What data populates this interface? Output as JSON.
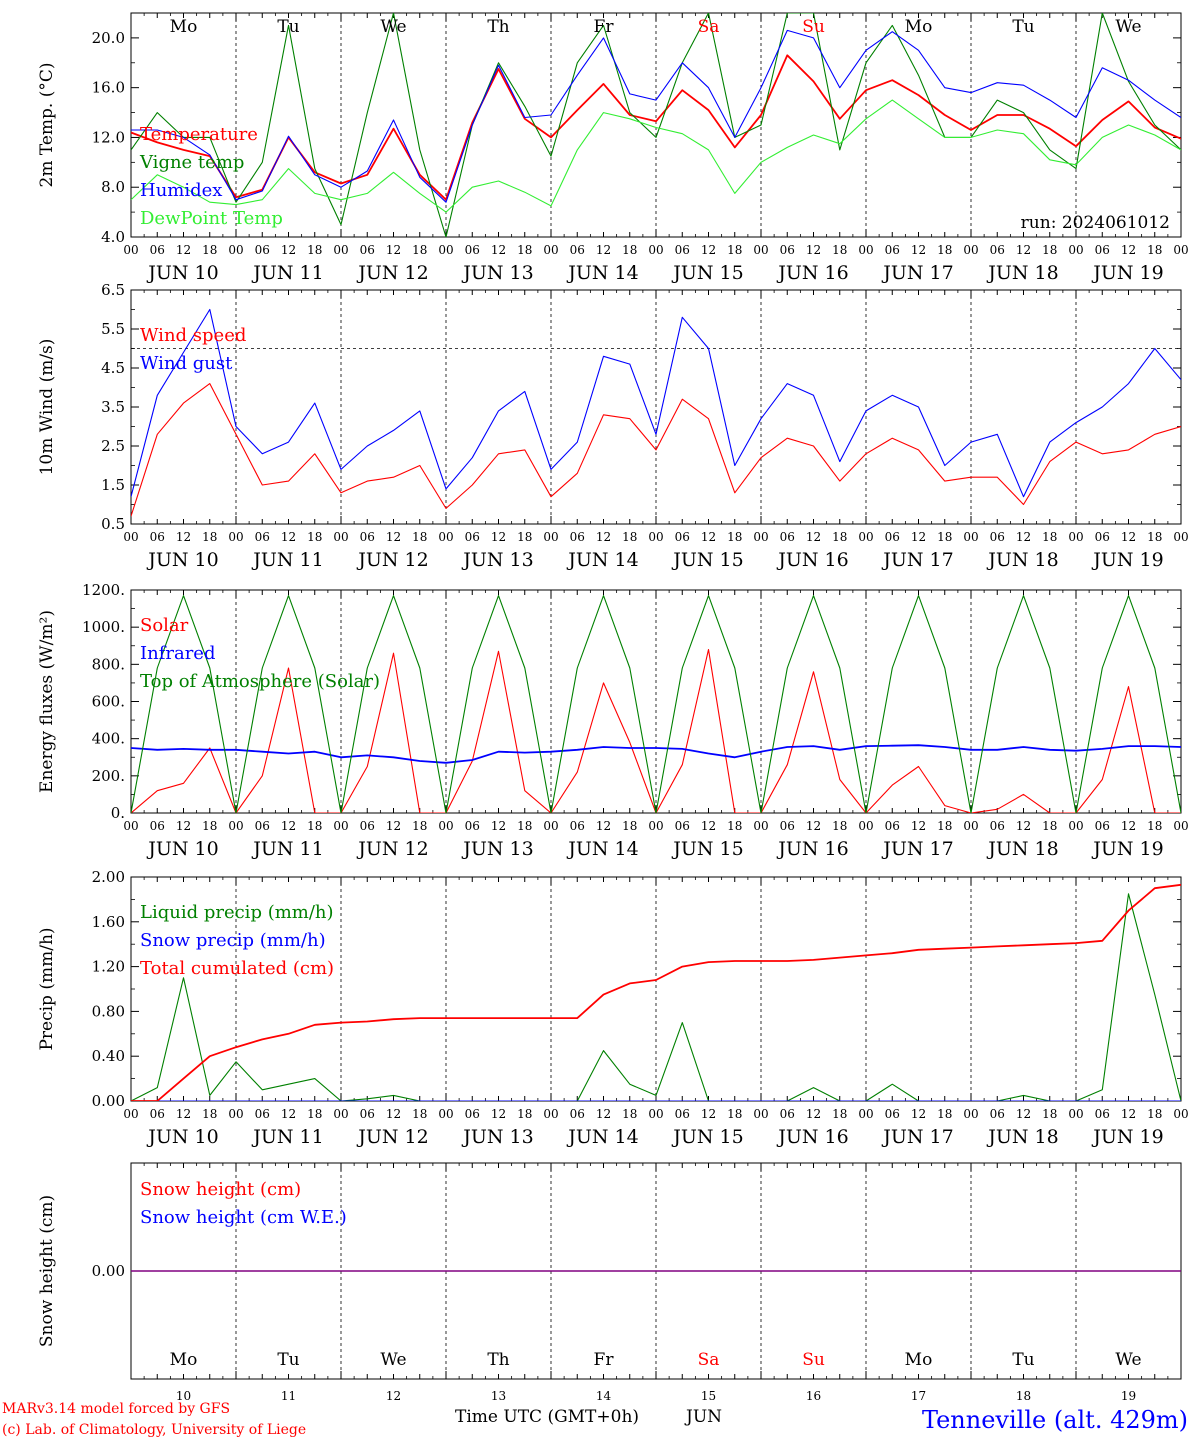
{
  "run_label": "run: 2024061012",
  "credit_line1": "MARv3.14 model forced by GFS",
  "credit_line2": "(c) Lab. of Climatology, University of Liege",
  "station_label": "Tenneville (alt. 429m)",
  "x_axis_title": "Time UTC (GMT+0h)",
  "month_label": "JUN",
  "hour_ticks": [
    "00",
    "06",
    "12",
    "18"
  ],
  "days": [
    {
      "date_label": "JUN 10",
      "dow": "Mo",
      "num": "10",
      "weekend": false
    },
    {
      "date_label": "JUN 11",
      "dow": "Tu",
      "num": "11",
      "weekend": false
    },
    {
      "date_label": "JUN 12",
      "dow": "We",
      "num": "12",
      "weekend": false
    },
    {
      "date_label": "JUN 13",
      "dow": "Th",
      "num": "13",
      "weekend": false
    },
    {
      "date_label": "JUN 14",
      "dow": "Fr",
      "num": "14",
      "weekend": false
    },
    {
      "date_label": "JUN 15",
      "dow": "Sa",
      "num": "15",
      "weekend": true
    },
    {
      "date_label": "JUN 16",
      "dow": "Su",
      "num": "16",
      "weekend": true
    },
    {
      "date_label": "JUN 17",
      "dow": "Mo",
      "num": "17",
      "weekend": false
    },
    {
      "date_label": "JUN 18",
      "dow": "Tu",
      "num": "18",
      "weekend": false
    },
    {
      "date_label": "JUN 19",
      "dow": "We",
      "num": "19",
      "weekend": false
    }
  ],
  "colors": {
    "red": "#ff0000",
    "blue": "#0000ff",
    "green": "#008000",
    "lightgreen": "#33ee33",
    "purple": "#800080",
    "axis": "#000000"
  },
  "chart_data": [
    {
      "id": "temp",
      "type": "line",
      "ylabel": "2m Temp. (°C)",
      "ylim": [
        4,
        22
      ],
      "yticks": [
        "4.0",
        "8.0",
        "12.0",
        "16.0",
        "20.0"
      ],
      "ytick_values": [
        4,
        8,
        12,
        16,
        20
      ],
      "x_hours": [
        0,
        6,
        12,
        18,
        24,
        30,
        36,
        42,
        48,
        54,
        60,
        66,
        72,
        78,
        84,
        90,
        96,
        102,
        108,
        114,
        120,
        126,
        132,
        138,
        144,
        150,
        156,
        162,
        168,
        174,
        180,
        186,
        192,
        198,
        204,
        210,
        216,
        222,
        228,
        234,
        240
      ],
      "series": [
        {
          "name": "Temperature",
          "color": "#ff0000",
          "values": [
            12.4,
            11.6,
            11.0,
            10.5,
            7.2,
            7.8,
            12.0,
            9.2,
            8.3,
            9.0,
            12.7,
            9.0,
            7.0,
            13.2,
            17.5,
            13.5,
            12.0,
            14.2,
            16.3,
            13.8,
            13.3,
            15.8,
            14.2,
            11.2,
            13.8,
            18.6,
            16.5,
            13.5,
            15.8,
            16.6,
            15.4,
            13.8,
            12.6,
            13.8,
            13.8,
            12.7,
            11.3,
            13.4,
            14.9,
            12.8,
            11.9
          ]
        },
        {
          "name": "Vigne temp",
          "color": "#008000",
          "values": [
            11.0,
            14.0,
            12.0,
            12.0,
            6.8,
            10.0,
            21.0,
            9.5,
            5.0,
            14.0,
            22.0,
            11.0,
            4.0,
            13.0,
            18.0,
            14.5,
            10.5,
            18.0,
            21.0,
            14.0,
            12.0,
            18.0,
            22.0,
            12.0,
            13.0,
            22.0,
            22.0,
            11.0,
            18.0,
            21.0,
            17.0,
            12.0,
            12.0,
            15.0,
            14.0,
            11.0,
            9.5,
            22.0,
            16.5,
            13.0,
            11.0
          ]
        },
        {
          "name": "Humidex",
          "color": "#0000ff",
          "values": [
            12.6,
            12.6,
            12.0,
            10.6,
            7.0,
            7.7,
            12.1,
            9.0,
            8.0,
            9.3,
            13.4,
            8.8,
            6.8,
            13.0,
            17.8,
            13.6,
            13.8,
            17.0,
            20.0,
            15.5,
            15.0,
            18.0,
            16.0,
            12.0,
            16.0,
            20.6,
            20.0,
            16.0,
            19.0,
            20.5,
            19.0,
            16.0,
            15.6,
            16.4,
            16.2,
            15.0,
            13.6,
            17.6,
            16.6,
            15.0,
            13.6
          ]
        },
        {
          "name": "DewPoint Temp",
          "color": "#33ee33",
          "values": [
            7.0,
            9.0,
            8.0,
            6.8,
            6.6,
            7.0,
            9.5,
            7.5,
            7.0,
            7.5,
            9.2,
            7.5,
            6.0,
            8.0,
            8.5,
            7.6,
            6.5,
            11.0,
            14.0,
            13.5,
            12.8,
            12.3,
            11.0,
            7.5,
            10.0,
            11.2,
            12.2,
            11.5,
            13.5,
            15.0,
            13.5,
            12.0,
            12.0,
            12.6,
            12.3,
            10.2,
            9.8,
            12.0,
            13.0,
            12.2,
            11.0
          ]
        }
      ]
    },
    {
      "id": "wind",
      "type": "line",
      "ylabel": "10m Wind (m/s)",
      "ylim": [
        0.5,
        6.5
      ],
      "yticks": [
        "0.5",
        "1.5",
        "2.5",
        "3.5",
        "4.5",
        "5.5",
        "6.5"
      ],
      "ytick_values": [
        0.5,
        1.5,
        2.5,
        3.5,
        4.5,
        5.5,
        6.5
      ],
      "threshold": 5.0,
      "x_hours": [
        0,
        6,
        12,
        18,
        24,
        30,
        36,
        42,
        48,
        54,
        60,
        66,
        72,
        78,
        84,
        90,
        96,
        102,
        108,
        114,
        120,
        126,
        132,
        138,
        144,
        150,
        156,
        162,
        168,
        174,
        180,
        186,
        192,
        198,
        204,
        210,
        216,
        222,
        228,
        234,
        240
      ],
      "series": [
        {
          "name": "Wind speed",
          "color": "#ff0000",
          "values": [
            0.7,
            2.8,
            3.6,
            4.1,
            2.8,
            1.5,
            1.6,
            2.3,
            1.3,
            1.6,
            1.7,
            2.0,
            0.9,
            1.5,
            2.3,
            2.4,
            1.2,
            1.8,
            3.3,
            3.2,
            2.4,
            3.7,
            3.2,
            1.3,
            2.2,
            2.7,
            2.5,
            1.6,
            2.3,
            2.7,
            2.4,
            1.6,
            1.7,
            1.7,
            1.0,
            2.1,
            2.6,
            2.3,
            2.4,
            2.8,
            3.0
          ]
        },
        {
          "name": "Wind gust",
          "color": "#0000ff",
          "values": [
            1.2,
            3.8,
            4.9,
            6.0,
            3.0,
            2.3,
            2.6,
            3.6,
            1.9,
            2.5,
            2.9,
            3.4,
            1.4,
            2.2,
            3.4,
            3.9,
            1.9,
            2.6,
            4.8,
            4.6,
            2.8,
            5.8,
            5.0,
            2.0,
            3.2,
            4.1,
            3.8,
            2.1,
            3.4,
            3.8,
            3.5,
            2.0,
            2.6,
            2.8,
            1.2,
            2.6,
            3.1,
            3.5,
            4.1,
            5.0,
            4.2
          ]
        }
      ]
    },
    {
      "id": "energy",
      "type": "line",
      "ylabel": "Energy fluxes (W/m²)",
      "ylim": [
        0,
        1200
      ],
      "yticks": [
        "0.",
        "200.",
        "400.",
        "600.",
        "800.",
        "1000.",
        "1200."
      ],
      "ytick_values": [
        0,
        200,
        400,
        600,
        800,
        1000,
        1200
      ],
      "x_hours": [
        0,
        6,
        12,
        18,
        24,
        30,
        36,
        42,
        48,
        54,
        60,
        66,
        72,
        78,
        84,
        90,
        96,
        102,
        108,
        114,
        120,
        126,
        132,
        138,
        144,
        150,
        156,
        162,
        168,
        174,
        180,
        186,
        192,
        198,
        204,
        210,
        216,
        222,
        228,
        234,
        240
      ],
      "series": [
        {
          "name": "Solar",
          "color": "#ff0000",
          "values": [
            0,
            120,
            160,
            350,
            0,
            200,
            780,
            0,
            0,
            250,
            860,
            0,
            0,
            280,
            870,
            120,
            0,
            220,
            700,
            380,
            0,
            260,
            880,
            0,
            0,
            260,
            760,
            180,
            0,
            150,
            250,
            40,
            0,
            20,
            100,
            0,
            0,
            180,
            680,
            0,
            0
          ]
        },
        {
          "name": "Infrared",
          "color": "#0000ff",
          "values": [
            350,
            340,
            345,
            340,
            340,
            330,
            320,
            330,
            300,
            310,
            300,
            280,
            270,
            285,
            330,
            325,
            330,
            340,
            355,
            350,
            350,
            345,
            320,
            300,
            330,
            355,
            360,
            340,
            360,
            362,
            365,
            355,
            340,
            340,
            355,
            340,
            335,
            345,
            360,
            360,
            355
          ]
        },
        {
          "name": "Top of Atmosphere (Solar)",
          "color": "#008000",
          "values": [
            0,
            780,
            1170,
            780,
            0,
            780,
            1170,
            780,
            0,
            780,
            1170,
            780,
            0,
            780,
            1170,
            780,
            0,
            780,
            1170,
            780,
            0,
            780,
            1170,
            780,
            0,
            780,
            1170,
            780,
            0,
            780,
            1170,
            780,
            0,
            780,
            1170,
            780,
            0,
            780,
            1170,
            780,
            0
          ]
        }
      ]
    },
    {
      "id": "precip",
      "type": "line",
      "ylabel": "Precip (mm/h)",
      "ylim": [
        0,
        2
      ],
      "yticks": [
        "0.00",
        "0.40",
        "0.80",
        "1.20",
        "1.60",
        "2.00"
      ],
      "ytick_values": [
        0,
        0.4,
        0.8,
        1.2,
        1.6,
        2.0
      ],
      "x_hours": [
        0,
        6,
        12,
        18,
        24,
        30,
        36,
        42,
        48,
        54,
        60,
        66,
        72,
        78,
        84,
        90,
        96,
        102,
        108,
        114,
        120,
        126,
        132,
        138,
        144,
        150,
        156,
        162,
        168,
        174,
        180,
        186,
        192,
        198,
        204,
        210,
        216,
        222,
        228,
        234,
        240
      ],
      "series": [
        {
          "name": "Liquid precip (mm/h)",
          "color": "#008000",
          "values": [
            0,
            0.12,
            1.1,
            0.05,
            0.35,
            0.1,
            0.15,
            0.2,
            0,
            0.02,
            0.05,
            0,
            0,
            0,
            0,
            0,
            0,
            0,
            0.45,
            0.15,
            0.05,
            0.7,
            0,
            0,
            0,
            0,
            0.12,
            0,
            0,
            0.15,
            0,
            0,
            0,
            0,
            0.05,
            0,
            0,
            0.1,
            1.85,
            0.95,
            0
          ]
        },
        {
          "name": "Snow precip (mm/h)",
          "color": "#0000ff",
          "values": [
            0,
            0,
            0,
            0,
            0,
            0,
            0,
            0,
            0,
            0,
            0,
            0,
            0,
            0,
            0,
            0,
            0,
            0,
            0,
            0,
            0,
            0,
            0,
            0,
            0,
            0,
            0,
            0,
            0,
            0,
            0,
            0,
            0,
            0,
            0,
            0,
            0,
            0,
            0,
            0,
            0
          ]
        },
        {
          "name": "Total cumulated (cm)",
          "color": "#ff0000",
          "values": [
            0,
            0,
            0.2,
            0.4,
            0.48,
            0.55,
            0.6,
            0.68,
            0.7,
            0.71,
            0.73,
            0.74,
            0.74,
            0.74,
            0.74,
            0.74,
            0.74,
            0.74,
            0.95,
            1.05,
            1.08,
            1.2,
            1.24,
            1.25,
            1.25,
            1.25,
            1.26,
            1.28,
            1.3,
            1.32,
            1.35,
            1.36,
            1.37,
            1.38,
            1.39,
            1.4,
            1.41,
            1.43,
            1.7,
            1.9,
            1.93
          ]
        }
      ]
    },
    {
      "id": "snow",
      "type": "line",
      "ylabel": "Snow height (cm)",
      "ylim": [
        -1,
        1
      ],
      "yticks": [
        "0.00"
      ],
      "ytick_values": [
        0
      ],
      "x_hours": [
        0,
        240
      ],
      "series": [
        {
          "name": "Snow height (cm)",
          "color": "#ff0000",
          "values": [
            0,
            0
          ]
        },
        {
          "name": "Snow height (cm W.E.)",
          "color": "#0000ff",
          "values": [
            0,
            0
          ]
        }
      ]
    }
  ]
}
